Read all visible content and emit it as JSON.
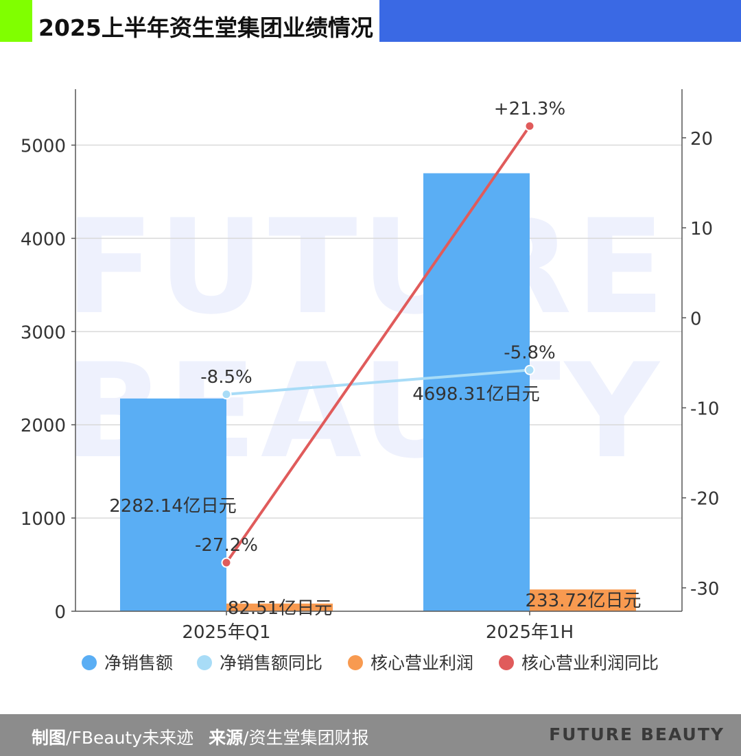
{
  "header": {
    "title": "2025上半年资生堂集团业绩情况"
  },
  "colors": {
    "accent_green": "#80ff00",
    "accent_blue": "#3a69e4",
    "net_sales": "#5aaef4",
    "net_sales_yoy": "#a8dcf7",
    "core_profit": "#f89a50",
    "core_profit_yoy": "#e05b5b",
    "watermark": "#eef1fd"
  },
  "watermark": {
    "line1": "FUTURE",
    "line2": "BEAUTY"
  },
  "chart_data": {
    "type": "bar",
    "categories": [
      "2025年Q1",
      "2025年1H"
    ],
    "y_left": {
      "ticks": [
        0,
        1000,
        2000,
        3000,
        4000,
        5000
      ],
      "lim": [
        0,
        5600
      ]
    },
    "y_right": {
      "ticks": [
        -30,
        -20,
        -10,
        0,
        10,
        20
      ],
      "lim": [
        -32.6,
        25.4
      ]
    },
    "grid": true,
    "legend_position": "bottom",
    "series": [
      {
        "name": "净销售额",
        "kind": "bar",
        "axis": "left",
        "values": [
          2282.14,
          4698.31
        ],
        "labels": [
          "2282.14亿日元",
          "4698.31亿日元"
        ]
      },
      {
        "name": "净销售额同比",
        "kind": "line",
        "axis": "right",
        "values": [
          -8.5,
          -5.8
        ],
        "labels": [
          "-8.5%",
          "-5.8%"
        ]
      },
      {
        "name": "核心营业利润",
        "kind": "bar",
        "axis": "left",
        "values": [
          82.51,
          233.72
        ],
        "labels": [
          "82.51亿日元",
          "233.72亿日元"
        ]
      },
      {
        "name": "核心营业利润同比",
        "kind": "line",
        "axis": "right",
        "values": [
          -27.2,
          21.3
        ],
        "labels": [
          "-27.2%",
          "+21.3%"
        ]
      }
    ]
  },
  "footer": {
    "chart_by_label": "制图",
    "chart_by": "/FBeauty未来迹",
    "source_label": "来源",
    "source": "/资生堂集团财报",
    "brand": "FUTURE BEAUTY"
  }
}
